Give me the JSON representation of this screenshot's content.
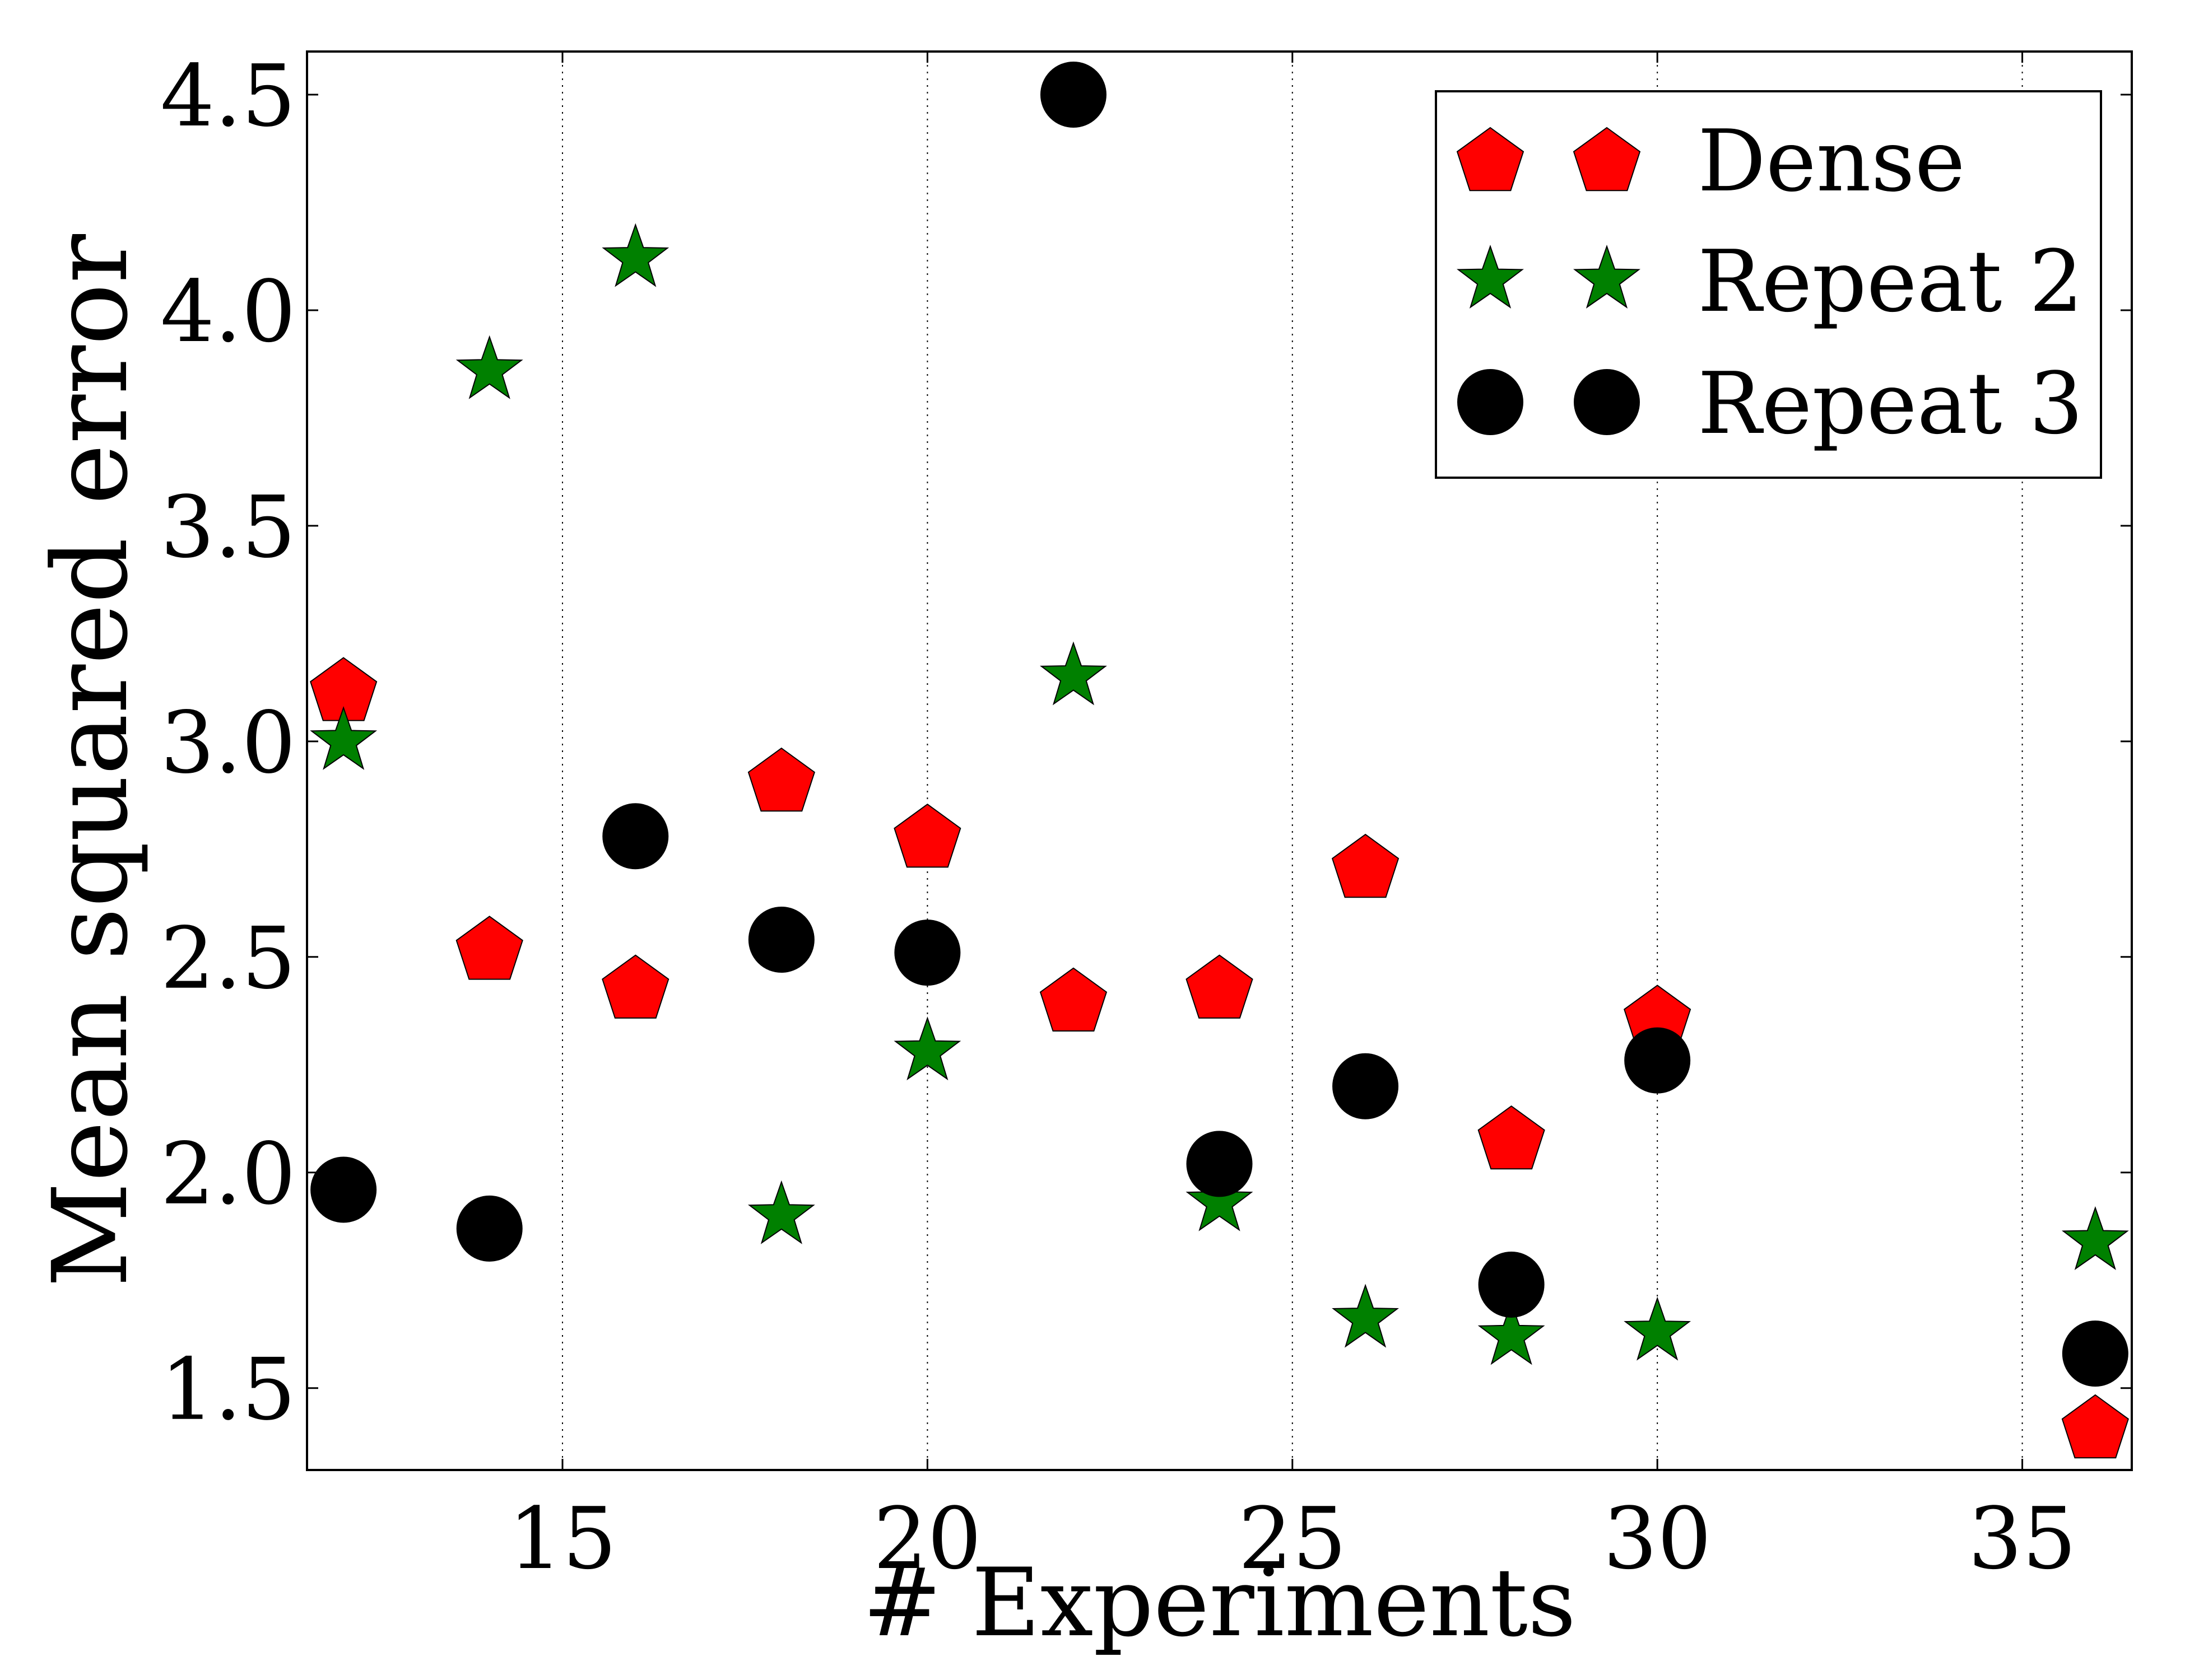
{
  "chart_data": {
    "type": "scatter",
    "xlabel": "# Experiments",
    "ylabel": "Mean squared error",
    "xlim": [
      11.5,
      36.5
    ],
    "ylim": [
      1.31,
      4.6
    ],
    "xticks": [
      15,
      20,
      25,
      30,
      35
    ],
    "xtick_labels": [
      "15",
      "20",
      "25",
      "30",
      "35"
    ],
    "yticks": [
      1.5,
      2.0,
      2.5,
      3.0,
      3.5,
      4.0,
      4.5
    ],
    "ytick_labels": [
      "1.5",
      "2.0",
      "2.5",
      "3.0",
      "3.5",
      "4.0",
      "4.5"
    ],
    "grid": "x-dotted",
    "legend_position": "top-right",
    "series": [
      {
        "name": "Dense",
        "marker": "pentagon",
        "color": "#ff0000",
        "x": [
          12,
          14,
          16,
          18,
          20,
          22,
          24,
          26,
          28,
          30,
          36
        ],
        "y": [
          3.12,
          2.52,
          2.43,
          2.91,
          2.78,
          2.4,
          2.43,
          2.71,
          2.08,
          2.36,
          1.41
        ]
      },
      {
        "name": "Repeat 2",
        "marker": "star",
        "color": "#008000",
        "x": [
          12,
          14,
          16,
          18,
          20,
          22,
          24,
          26,
          28,
          30,
          36
        ],
        "y": [
          3.0,
          3.86,
          4.12,
          1.9,
          2.28,
          3.15,
          1.93,
          1.66,
          1.62,
          1.63,
          1.84
        ]
      },
      {
        "name": "Repeat 3",
        "marker": "circle",
        "color": "#000000",
        "x": [
          12,
          14,
          16,
          18,
          20,
          22,
          24,
          26,
          28,
          30,
          36
        ],
        "y": [
          1.96,
          1.87,
          2.78,
          2.54,
          2.51,
          4.5,
          2.02,
          2.2,
          1.74,
          2.26,
          1.58
        ]
      }
    ]
  }
}
